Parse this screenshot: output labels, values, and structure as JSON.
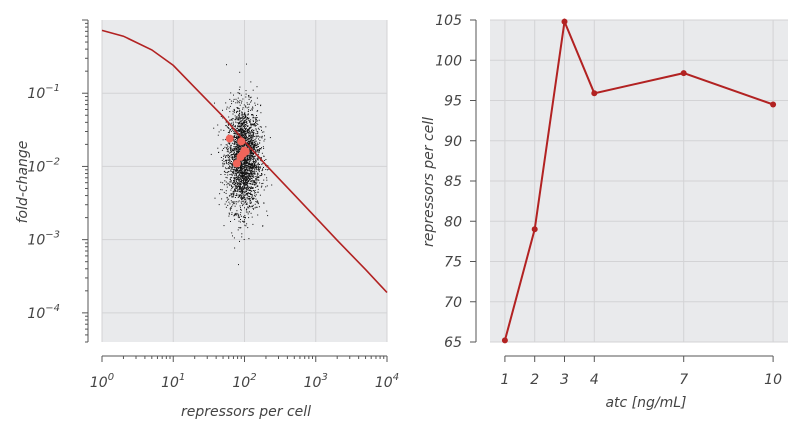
{
  "colors": {
    "plot_bg": "#e9eaec",
    "grid": "#d3d3d5",
    "axis": "#555555",
    "theory_line": "#b22222",
    "cloud": "#111111",
    "means": "#f0655a",
    "series_line": "#b22222"
  },
  "chart_data": [
    {
      "type": "scatter",
      "xlabel": "repressors per cell",
      "ylabel": "fold-change",
      "x_scale": "log",
      "y_scale": "log",
      "xlim": [
        1,
        10000
      ],
      "ylim": [
        4e-05,
        1
      ],
      "xticks": [
        {
          "value": 1,
          "base": "10",
          "exp": "0"
        },
        {
          "value": 10,
          "base": "10",
          "exp": "1"
        },
        {
          "value": 100,
          "base": "10",
          "exp": "2"
        },
        {
          "value": 1000,
          "base": "10",
          "exp": "3"
        },
        {
          "value": 10000,
          "base": "10",
          "exp": "4"
        }
      ],
      "yticks": [
        {
          "value": 0.1,
          "base": "10",
          "exp": "−1"
        },
        {
          "value": 0.01,
          "base": "10",
          "exp": "−2"
        },
        {
          "value": 0.001,
          "base": "10",
          "exp": "−3"
        },
        {
          "value": 0.0001,
          "base": "10",
          "exp": "−4"
        }
      ],
      "grid": true,
      "theory_line": {
        "x": [
          1,
          2,
          5,
          10,
          20,
          50,
          100,
          200,
          500,
          1000,
          2000,
          5000,
          10000
        ],
        "y": [
          0.72,
          0.6,
          0.39,
          0.24,
          0.12,
          0.048,
          0.022,
          0.0105,
          0.0041,
          0.002,
          0.00098,
          0.00039,
          0.00019
        ]
      },
      "cloud": {
        "center_x": 95,
        "center_y": 0.013,
        "count": 2600
      },
      "means": {
        "x": [
          62,
          78,
          88,
          96,
          100,
          104,
          90
        ],
        "y": [
          0.024,
          0.011,
          0.0135,
          0.015,
          0.0165,
          0.016,
          0.022
        ]
      }
    },
    {
      "type": "line",
      "xlabel": "atc [ng/mL]",
      "ylabel": "repressors per cell",
      "x_scale": "linear",
      "xlim": [
        1,
        10
      ],
      "ylim": [
        65,
        105
      ],
      "xticks": [
        1,
        2,
        3,
        4,
        7,
        10
      ],
      "yticks": [
        65,
        70,
        75,
        80,
        85,
        90,
        95,
        100,
        105
      ],
      "grid": true,
      "x": [
        1,
        2,
        3,
        4,
        7,
        10
      ],
      "y": [
        65.2,
        79,
        104.8,
        95.9,
        98.4,
        94.5
      ]
    }
  ]
}
